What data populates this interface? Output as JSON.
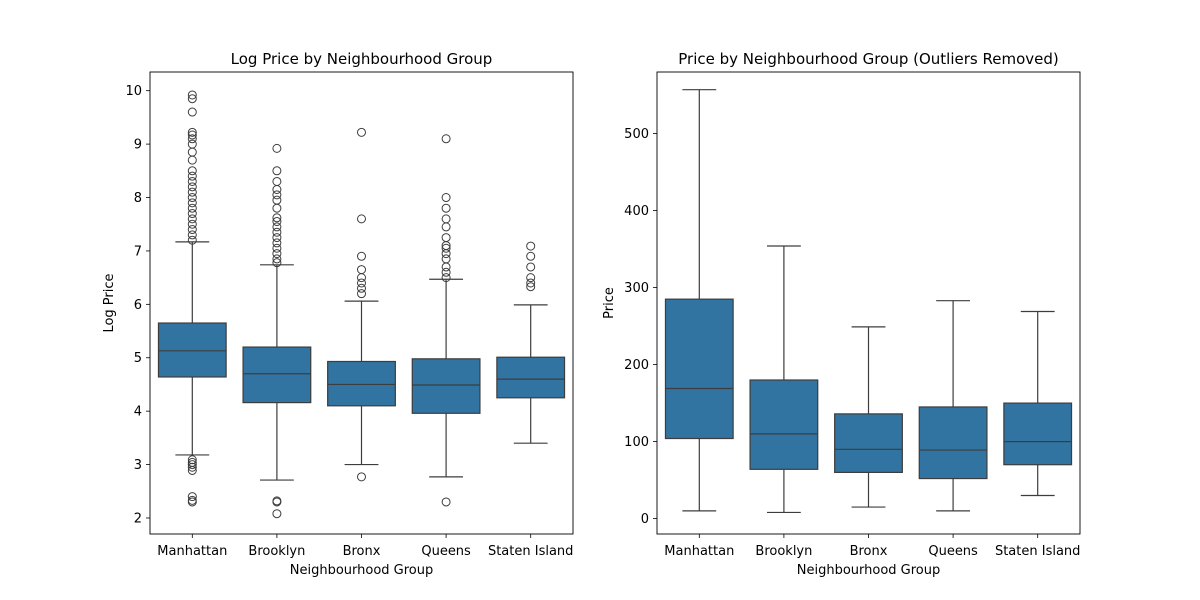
{
  "chart_data": [
    {
      "type": "box",
      "title": "Log Price by Neighbourhood Group",
      "xlabel": "Neighbourhood Group",
      "ylabel": "Log Price",
      "ylim": [
        1.7,
        10.35
      ],
      "yticks": [
        2,
        3,
        4,
        5,
        6,
        7,
        8,
        9,
        10
      ],
      "categories": [
        "Manhattan",
        "Brooklyn",
        "Bronx",
        "Queens",
        "Staten Island"
      ],
      "box_color": "#3274a1",
      "boxes": [
        {
          "whisker_low": 3.18,
          "q1": 4.64,
          "median": 5.13,
          "q3": 5.65,
          "whisker_high": 7.17,
          "outliers": [
            2.3,
            2.33,
            2.4,
            2.89,
            2.95,
            3.0,
            3.04,
            3.09,
            7.2,
            7.3,
            7.4,
            7.5,
            7.6,
            7.7,
            7.8,
            7.9,
            8.0,
            8.1,
            8.2,
            8.3,
            8.4,
            8.5,
            8.7,
            8.85,
            9.0,
            9.1,
            9.17,
            9.22,
            9.6,
            9.85,
            9.92
          ]
        },
        {
          "whisker_low": 2.71,
          "q1": 4.16,
          "median": 4.7,
          "q3": 5.2,
          "whisker_high": 6.74,
          "outliers": [
            2.08,
            2.3,
            2.32,
            6.78,
            6.85,
            6.95,
            7.05,
            7.15,
            7.25,
            7.35,
            7.45,
            7.55,
            7.62,
            7.8,
            7.95,
            8.05,
            8.15,
            8.3,
            8.5,
            8.92
          ]
        },
        {
          "whisker_low": 3.0,
          "q1": 4.1,
          "median": 4.5,
          "q3": 4.93,
          "whisker_high": 6.06,
          "outliers": [
            2.77,
            6.2,
            6.3,
            6.4,
            6.5,
            6.65,
            6.9,
            7.6,
            9.22
          ]
        },
        {
          "whisker_low": 2.77,
          "q1": 3.96,
          "median": 4.49,
          "q3": 4.98,
          "whisker_high": 6.47,
          "outliers": [
            2.3,
            6.5,
            6.6,
            6.7,
            6.85,
            6.95,
            7.05,
            7.1,
            7.25,
            7.45,
            7.6,
            7.8,
            8.0,
            9.1
          ]
        },
        {
          "whisker_low": 3.4,
          "q1": 4.25,
          "median": 4.6,
          "q3": 5.01,
          "whisker_high": 5.99,
          "outliers": [
            6.33,
            6.4,
            6.5,
            6.7,
            6.9,
            7.09
          ]
        }
      ]
    },
    {
      "type": "box",
      "title": "Price by Neighbourhood Group (Outliers Removed)",
      "xlabel": "Neighbourhood Group",
      "ylabel": "Price",
      "ylim": [
        -20,
        580
      ],
      "yticks": [
        0,
        100,
        200,
        300,
        400,
        500
      ],
      "categories": [
        "Manhattan",
        "Brooklyn",
        "Bronx",
        "Queens",
        "Staten Island"
      ],
      "box_color": "#3274a1",
      "boxes": [
        {
          "whisker_low": 10,
          "q1": 104,
          "median": 169,
          "q3": 285,
          "whisker_high": 557,
          "outliers": []
        },
        {
          "whisker_low": 8,
          "q1": 64,
          "median": 110,
          "q3": 180,
          "whisker_high": 354,
          "outliers": []
        },
        {
          "whisker_low": 15,
          "q1": 60,
          "median": 90,
          "q3": 136,
          "whisker_high": 249,
          "outliers": []
        },
        {
          "whisker_low": 10,
          "q1": 52,
          "median": 89,
          "q3": 145,
          "whisker_high": 283,
          "outliers": []
        },
        {
          "whisker_low": 30,
          "q1": 70,
          "median": 100,
          "q3": 150,
          "whisker_high": 269,
          "outliers": []
        }
      ]
    }
  ]
}
